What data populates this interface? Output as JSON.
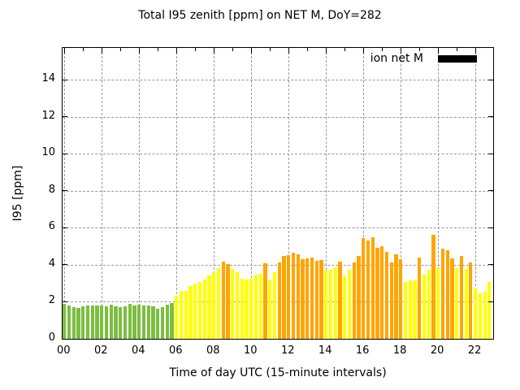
{
  "chart_data": {
    "type": "bar",
    "title": "Total I95 zenith [ppm] on NET M, DoY=282",
    "xlabel": "Time of day UTC (15-minute intervals)",
    "ylabel": "I95 [ppm]",
    "legend": {
      "label": "ion net M",
      "swatch_color": "#000000"
    },
    "xlim_hours": [
      -0.1,
      22.95
    ],
    "ylim": [
      0,
      15.72
    ],
    "x_major_ticks": [
      0,
      2,
      4,
      6,
      8,
      10,
      12,
      14,
      16,
      18,
      20,
      22
    ],
    "x_tick_labels": [
      "00",
      "02",
      "04",
      "06",
      "08",
      "10",
      "12",
      "14",
      "16",
      "18",
      "20",
      "22"
    ],
    "x_minor_ticks": [
      1,
      3,
      5,
      7,
      9,
      11,
      13,
      15,
      17,
      19,
      21
    ],
    "y_ticks": [
      0,
      2,
      4,
      6,
      8,
      10,
      12,
      14
    ],
    "grid": true,
    "interval_minutes": 15,
    "colors": {
      "g": "#7CBE41",
      "y": "#FFFF00",
      "o": "#FFA500"
    },
    "bars": [
      {
        "t": "00:00",
        "v": 1.88,
        "c": "g"
      },
      {
        "t": "00:15",
        "v": 1.79,
        "c": "g"
      },
      {
        "t": "00:30",
        "v": 1.71,
        "c": "g"
      },
      {
        "t": "00:45",
        "v": 1.68,
        "c": "g"
      },
      {
        "t": "01:00",
        "v": 1.76,
        "c": "g"
      },
      {
        "t": "01:15",
        "v": 1.79,
        "c": "g"
      },
      {
        "t": "01:30",
        "v": 1.82,
        "c": "g"
      },
      {
        "t": "01:45",
        "v": 1.82,
        "c": "g"
      },
      {
        "t": "02:00",
        "v": 1.79,
        "c": "g"
      },
      {
        "t": "02:15",
        "v": 1.76,
        "c": "g"
      },
      {
        "t": "02:30",
        "v": 1.85,
        "c": "g"
      },
      {
        "t": "02:45",
        "v": 1.76,
        "c": "g"
      },
      {
        "t": "03:00",
        "v": 1.73,
        "c": "g"
      },
      {
        "t": "03:15",
        "v": 1.76,
        "c": "g"
      },
      {
        "t": "03:30",
        "v": 1.88,
        "c": "g"
      },
      {
        "t": "03:45",
        "v": 1.8,
        "c": "g"
      },
      {
        "t": "04:00",
        "v": 1.83,
        "c": "g"
      },
      {
        "t": "04:15",
        "v": 1.79,
        "c": "g"
      },
      {
        "t": "04:30",
        "v": 1.8,
        "c": "g"
      },
      {
        "t": "04:45",
        "v": 1.76,
        "c": "g"
      },
      {
        "t": "05:00",
        "v": 1.63,
        "c": "g"
      },
      {
        "t": "05:15",
        "v": 1.7,
        "c": "g"
      },
      {
        "t": "05:30",
        "v": 1.85,
        "c": "g"
      },
      {
        "t": "05:45",
        "v": 1.93,
        "c": "g"
      },
      {
        "t": "06:00",
        "v": 2.32,
        "c": "y"
      },
      {
        "t": "06:15",
        "v": 2.58,
        "c": "y"
      },
      {
        "t": "06:30",
        "v": 2.61,
        "c": "y"
      },
      {
        "t": "06:45",
        "v": 2.87,
        "c": "y"
      },
      {
        "t": "07:00",
        "v": 2.99,
        "c": "y"
      },
      {
        "t": "07:15",
        "v": 3.09,
        "c": "y"
      },
      {
        "t": "07:30",
        "v": 3.22,
        "c": "y"
      },
      {
        "t": "07:45",
        "v": 3.43,
        "c": "y"
      },
      {
        "t": "08:00",
        "v": 3.6,
        "c": "y"
      },
      {
        "t": "08:15",
        "v": 3.82,
        "c": "y"
      },
      {
        "t": "08:30",
        "v": 4.16,
        "c": "o"
      },
      {
        "t": "08:45",
        "v": 4.04,
        "c": "o"
      },
      {
        "t": "09:00",
        "v": 3.78,
        "c": "y"
      },
      {
        "t": "09:15",
        "v": 3.6,
        "c": "y"
      },
      {
        "t": "09:30",
        "v": 3.27,
        "c": "y"
      },
      {
        "t": "09:45",
        "v": 3.21,
        "c": "y"
      },
      {
        "t": "10:00",
        "v": 3.27,
        "c": "y"
      },
      {
        "t": "10:15",
        "v": 3.46,
        "c": "y"
      },
      {
        "t": "10:30",
        "v": 3.53,
        "c": "y"
      },
      {
        "t": "10:45",
        "v": 4.07,
        "c": "o"
      },
      {
        "t": "11:00",
        "v": 3.15,
        "c": "y"
      },
      {
        "t": "11:15",
        "v": 3.62,
        "c": "y"
      },
      {
        "t": "11:30",
        "v": 4.14,
        "c": "o"
      },
      {
        "t": "11:45",
        "v": 4.48,
        "c": "o"
      },
      {
        "t": "12:00",
        "v": 4.52,
        "c": "o"
      },
      {
        "t": "12:15",
        "v": 4.65,
        "c": "o"
      },
      {
        "t": "12:30",
        "v": 4.58,
        "c": "o"
      },
      {
        "t": "12:45",
        "v": 4.3,
        "c": "o"
      },
      {
        "t": "13:00",
        "v": 4.33,
        "c": "o"
      },
      {
        "t": "13:15",
        "v": 4.4,
        "c": "o"
      },
      {
        "t": "13:30",
        "v": 4.21,
        "c": "o"
      },
      {
        "t": "13:45",
        "v": 4.24,
        "c": "o"
      },
      {
        "t": "14:00",
        "v": 3.72,
        "c": "y"
      },
      {
        "t": "14:15",
        "v": 3.72,
        "c": "y"
      },
      {
        "t": "14:30",
        "v": 3.85,
        "c": "y"
      },
      {
        "t": "14:45",
        "v": 4.16,
        "c": "o"
      },
      {
        "t": "15:00",
        "v": 3.36,
        "c": "y"
      },
      {
        "t": "15:15",
        "v": 3.75,
        "c": "y"
      },
      {
        "t": "15:30",
        "v": 4.11,
        "c": "o"
      },
      {
        "t": "15:45",
        "v": 4.5,
        "c": "o"
      },
      {
        "t": "16:00",
        "v": 5.45,
        "c": "o"
      },
      {
        "t": "16:15",
        "v": 5.31,
        "c": "o"
      },
      {
        "t": "16:30",
        "v": 5.49,
        "c": "o"
      },
      {
        "t": "16:45",
        "v": 4.91,
        "c": "o"
      },
      {
        "t": "17:00",
        "v": 4.99,
        "c": "o"
      },
      {
        "t": "17:15",
        "v": 4.69,
        "c": "o"
      },
      {
        "t": "17:30",
        "v": 4.11,
        "c": "o"
      },
      {
        "t": "17:45",
        "v": 4.55,
        "c": "o"
      },
      {
        "t": "18:00",
        "v": 4.31,
        "c": "o"
      },
      {
        "t": "18:15",
        "v": 3.09,
        "c": "y"
      },
      {
        "t": "18:30",
        "v": 3.17,
        "c": "y"
      },
      {
        "t": "18:45",
        "v": 3.17,
        "c": "y"
      },
      {
        "t": "19:00",
        "v": 4.4,
        "c": "o"
      },
      {
        "t": "19:15",
        "v": 3.49,
        "c": "y"
      },
      {
        "t": "19:30",
        "v": 3.75,
        "c": "y"
      },
      {
        "t": "19:45",
        "v": 5.64,
        "c": "o"
      },
      {
        "t": "20:00",
        "v": 3.82,
        "c": "y"
      },
      {
        "t": "20:15",
        "v": 4.88,
        "c": "o"
      },
      {
        "t": "20:30",
        "v": 4.77,
        "c": "o"
      },
      {
        "t": "20:45",
        "v": 4.33,
        "c": "o"
      },
      {
        "t": "21:00",
        "v": 3.82,
        "c": "y"
      },
      {
        "t": "21:15",
        "v": 4.48,
        "c": "o"
      },
      {
        "t": "21:30",
        "v": 3.78,
        "c": "y"
      },
      {
        "t": "21:45",
        "v": 4.14,
        "c": "o"
      },
      {
        "t": "22:00",
        "v": 2.77,
        "c": "y"
      },
      {
        "t": "22:15",
        "v": 2.48,
        "c": "y"
      },
      {
        "t": "22:30",
        "v": 2.54,
        "c": "y"
      },
      {
        "t": "22:45",
        "v": 3.06,
        "c": "y"
      }
    ]
  }
}
